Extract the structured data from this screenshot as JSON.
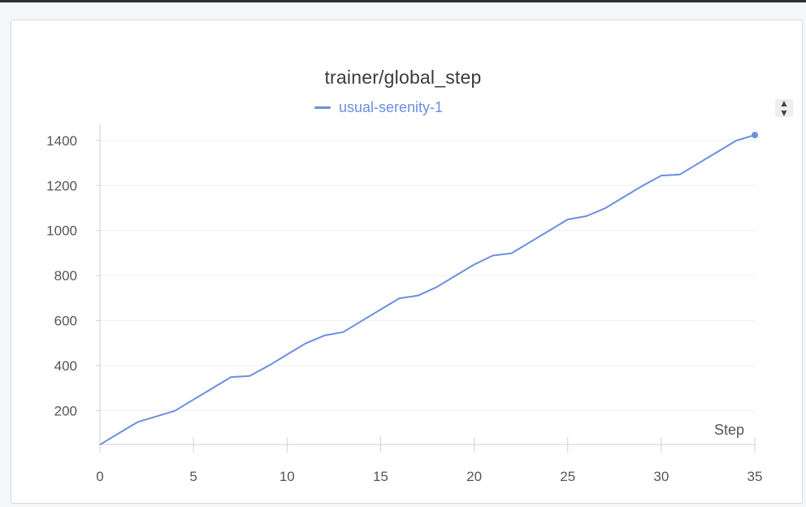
{
  "chart_data": {
    "type": "line",
    "title": "trainer/global_step",
    "xlabel": "Step",
    "ylabel": "",
    "xlim": [
      0,
      35
    ],
    "ylim": [
      50,
      1450
    ],
    "x_ticks": [
      0,
      5,
      10,
      15,
      20,
      25,
      30,
      35
    ],
    "y_ticks": [
      200,
      400,
      600,
      800,
      1000,
      1200,
      1400
    ],
    "grid": true,
    "legend_position": "top-center",
    "series": [
      {
        "name": "usual-serenity-1",
        "color": "#6b8fe0",
        "x": [
          0,
          1,
          2,
          3,
          4,
          5,
          6,
          7,
          8,
          9,
          10,
          11,
          12,
          13,
          14,
          15,
          16,
          17,
          18,
          19,
          20,
          21,
          22,
          23,
          24,
          25,
          26,
          27,
          28,
          29,
          30,
          31,
          32,
          33,
          34,
          35
        ],
        "values": [
          49,
          99,
          149,
          174,
          199,
          249,
          299,
          349,
          354,
          399,
          449,
          499,
          534,
          549,
          599,
          649,
          699,
          711,
          749,
          799,
          849,
          889,
          899,
          949,
          999,
          1049,
          1064,
          1099,
          1149,
          1199,
          1244,
          1249,
          1299,
          1349,
          1399,
          1424
        ]
      }
    ]
  },
  "controls": {
    "sort_icon": "sort-arrows-icon"
  }
}
